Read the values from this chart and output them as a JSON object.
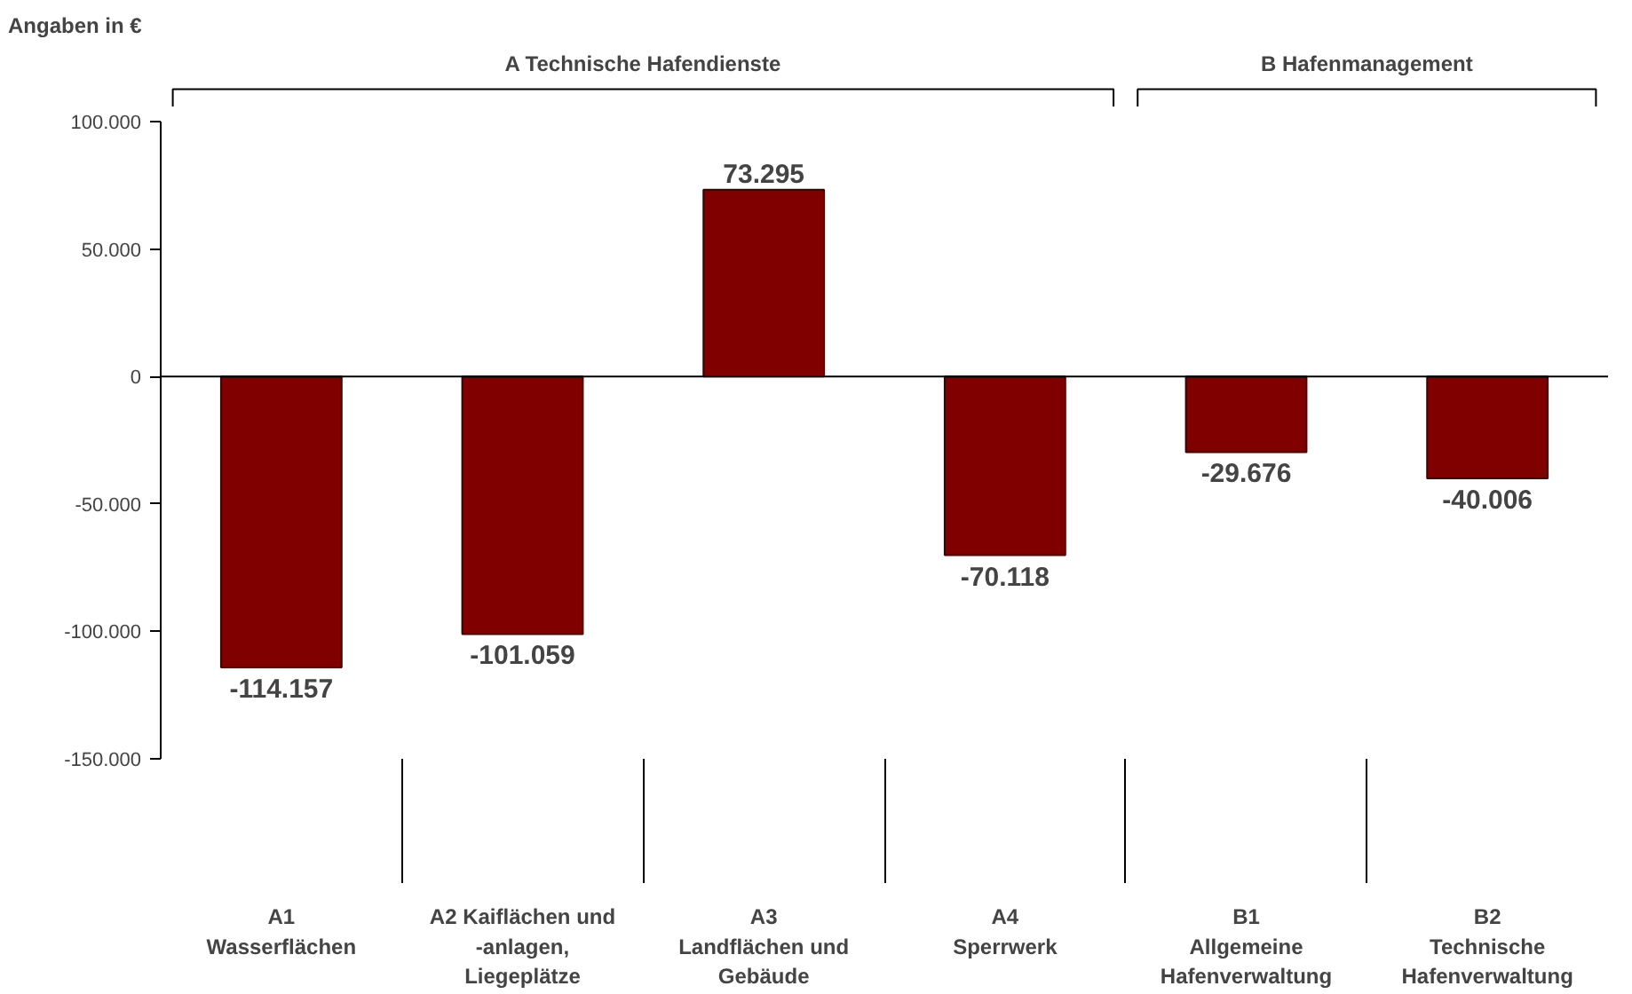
{
  "chart_data": {
    "type": "bar",
    "ylabel": "Angaben in €",
    "categories": [
      "A1\nWasserflächen",
      "A2 Kaiflächen und\n-anlagen,\nLiegeplätze",
      "A3\nLandflächen und\nGebäude",
      "A4\nSperrwerk",
      "B1\nAllgemeine\nHafenverwaltung",
      "B2\nTechnische\nHafenverwaltung"
    ],
    "values": [
      -114157,
      -101059,
      73295,
      -70118,
      -29676,
      -40006
    ],
    "value_labels": [
      "-114.157",
      "-101.059",
      "73.295",
      "-70.118",
      "-29.676",
      "-40.006"
    ],
    "color": "#800000",
    "ylim": [
      -150000,
      100000
    ],
    "yticks": [
      {
        "value": -150000,
        "label": "-150.000"
      },
      {
        "value": -100000,
        "label": "-100.000"
      },
      {
        "value": -50000,
        "label": "-50.000"
      },
      {
        "value": 0,
        "label": "0"
      },
      {
        "value": 50000,
        "label": "50.000"
      },
      {
        "value": 100000,
        "label": "100.000"
      }
    ],
    "annotations": [
      "A Technische Hafendienste",
      "B Hafenmanagement"
    ]
  }
}
